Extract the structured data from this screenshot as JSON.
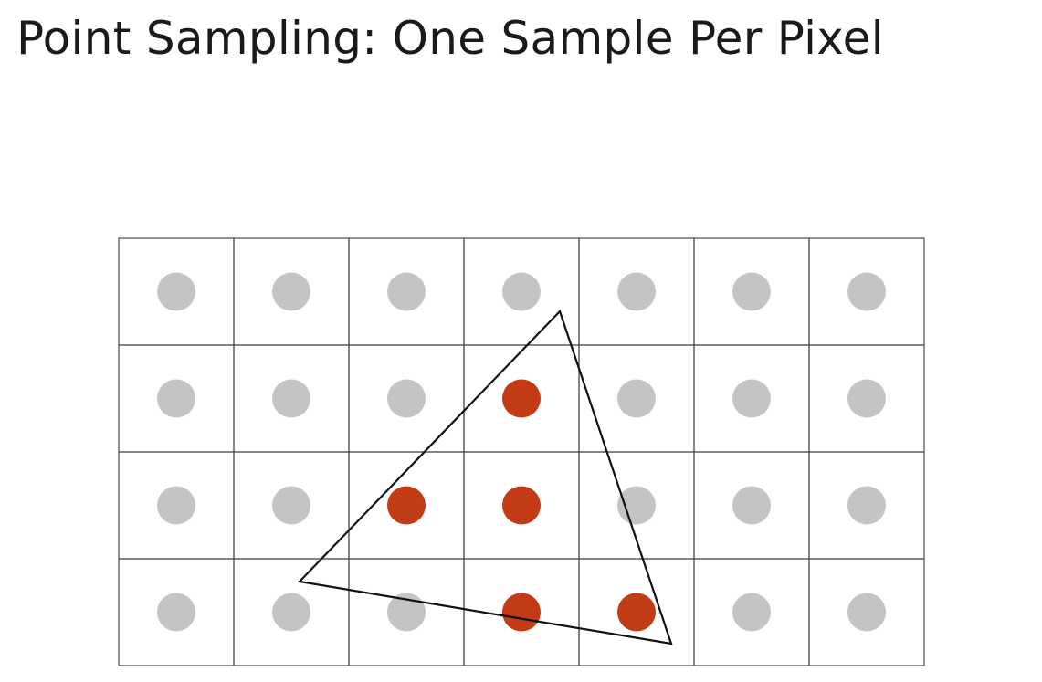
{
  "slide": {
    "title": "Point Sampling: One Sample Per Pixel"
  },
  "grid": {
    "columns": 7,
    "rows": 4
  },
  "colors": {
    "sample_outside": "#c4c4c4",
    "sample_inside": "#c23b14",
    "grid_line": "#4a4a4a",
    "triangle_stroke": "#111111"
  },
  "covered_samples": [
    {
      "row": 1,
      "col": 3
    },
    {
      "row": 2,
      "col": 2
    },
    {
      "row": 2,
      "col": 3
    },
    {
      "row": 3,
      "col": 3
    },
    {
      "row": 3,
      "col": 4
    }
  ]
}
